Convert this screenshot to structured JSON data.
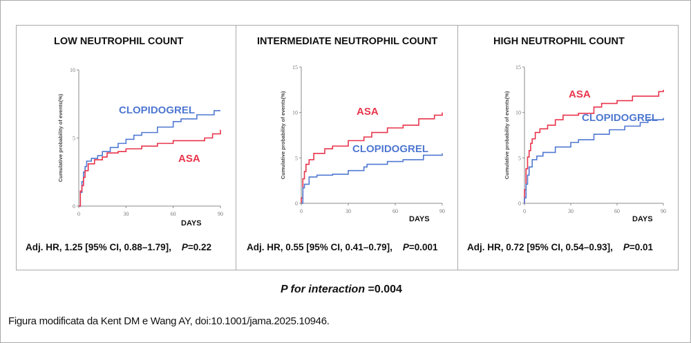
{
  "colors": {
    "asa": "#e8334a",
    "clopidogrel": "#4f78d1",
    "axis": "#888888",
    "border": "#a9a9a9"
  },
  "footer": {
    "interaction_italic": "P for interaction",
    "interaction_value": " =0.004",
    "source": "Figura modificata da Kent DM e Wang AY, doi:10.1001/jama.2025.10946."
  },
  "chart_data": [
    {
      "type": "line",
      "step": true,
      "title": "LOW NEUTROPHIL COUNT",
      "xlabel": "DAYS",
      "ylabel": "Cumulative probability of events(%)",
      "xlim": [
        0,
        90
      ],
      "ylim": [
        0,
        10
      ],
      "xticks": [
        "0",
        "30",
        "60",
        "90"
      ],
      "yticks": [
        "0",
        "5",
        "10"
      ],
      "ytick_values": [
        0,
        5,
        10
      ],
      "annotation": {
        "prefix": "Adj. HR, 1.25 [95% CI, 0.88–1.79],",
        "p_label": "P",
        "p_value": "=0.22"
      },
      "series": [
        {
          "name": "CLOPIDOGREL",
          "color": "#4f78d1",
          "x": [
            0,
            1,
            2,
            3,
            4,
            5,
            8,
            12,
            15,
            20,
            25,
            30,
            35,
            40,
            50,
            60,
            65,
            75,
            85,
            86,
            90
          ],
          "y": [
            0,
            1.0,
            1.8,
            2.5,
            2.9,
            3.3,
            3.5,
            3.7,
            4.0,
            4.3,
            4.6,
            4.9,
            5.2,
            5.4,
            5.8,
            6.2,
            6.4,
            6.7,
            6.7,
            7.0,
            7.0
          ]
        },
        {
          "name": "ASA",
          "color": "#e8334a",
          "x": [
            0,
            1,
            2,
            3,
            4,
            6,
            10,
            15,
            18,
            25,
            30,
            40,
            50,
            60,
            75,
            80,
            85,
            90
          ],
          "y": [
            0,
            1.1,
            1.5,
            2.1,
            2.6,
            3.1,
            3.4,
            3.6,
            3.9,
            4.0,
            4.2,
            4.4,
            4.6,
            4.8,
            4.8,
            5.0,
            5.3,
            5.6
          ]
        }
      ]
    },
    {
      "type": "line",
      "step": true,
      "title": "INTERMEDIATE NEUTROPHIL COUNT",
      "xlabel": "DAYS",
      "ylabel": "Cumulative probability of events(%)",
      "xlim": [
        0,
        90
      ],
      "ylim": [
        0,
        15
      ],
      "xticks": [
        "0",
        "30",
        "60",
        "90"
      ],
      "yticks": [
        "0",
        "5",
        "10",
        "15"
      ],
      "ytick_values": [
        0,
        5,
        10,
        15
      ],
      "annotation": {
        "prefix": "Adj. HR, 0.55 [95% CI, 0.41–0.79],",
        "p_label": "P",
        "p_value": "=0.001"
      },
      "series": [
        {
          "name": "ASA",
          "color": "#e8334a",
          "x": [
            0,
            1,
            2,
            3,
            5,
            8,
            15,
            20,
            30,
            40,
            45,
            55,
            65,
            75,
            85,
            90
          ],
          "y": [
            0.6,
            2.7,
            3.5,
            4.3,
            4.8,
            5.5,
            6.0,
            6.3,
            6.9,
            7.3,
            7.8,
            8.3,
            8.6,
            9.3,
            9.7,
            10.0
          ]
        },
        {
          "name": "CLOPIDOGREL",
          "color": "#4f78d1",
          "x": [
            0,
            1,
            2,
            5,
            10,
            20,
            30,
            40,
            42,
            55,
            65,
            78,
            90
          ],
          "y": [
            0,
            1.7,
            2.1,
            2.9,
            3.1,
            3.2,
            3.6,
            4.0,
            4.3,
            4.6,
            4.8,
            5.3,
            5.5
          ]
        }
      ]
    },
    {
      "type": "line",
      "step": true,
      "title": "HIGH NEUTROPHIL COUNT",
      "xlabel": "DAYS",
      "ylabel": "Cumulative probability of events(%)",
      "xlim": [
        0,
        90
      ],
      "ylim": [
        0,
        15
      ],
      "xticks": [
        "0",
        "30",
        "60",
        "90"
      ],
      "yticks": [
        "0",
        "5",
        "10",
        "15"
      ],
      "ytick_values": [
        0,
        5,
        10,
        15
      ],
      "annotation": {
        "prefix": "Adj. HR, 0.72 [95% CI, 0.54–0.93],",
        "p_label": "P",
        "p_value": "=0.01"
      },
      "series": [
        {
          "name": "ASA",
          "color": "#e8334a",
          "x": [
            0,
            1,
            2,
            3,
            4,
            5,
            7,
            10,
            15,
            20,
            25,
            35,
            45,
            50,
            60,
            70,
            83,
            87,
            90
          ],
          "y": [
            1.5,
            3.8,
            5.1,
            5.8,
            6.6,
            7.1,
            7.8,
            8.2,
            8.6,
            9.2,
            9.7,
            9.9,
            10.6,
            11.0,
            11.3,
            11.8,
            11.8,
            12.3,
            12.5
          ]
        },
        {
          "name": "CLOPIDOGREL",
          "color": "#4f78d1",
          "x": [
            0,
            1,
            2,
            3,
            5,
            8,
            12,
            20,
            30,
            35,
            45,
            55,
            65,
            75,
            80,
            90
          ],
          "y": [
            0.6,
            2.1,
            3.1,
            4.0,
            4.8,
            5.2,
            5.6,
            6.2,
            6.7,
            7.0,
            7.6,
            8.1,
            8.5,
            8.9,
            9.2,
            9.4
          ]
        }
      ]
    }
  ]
}
